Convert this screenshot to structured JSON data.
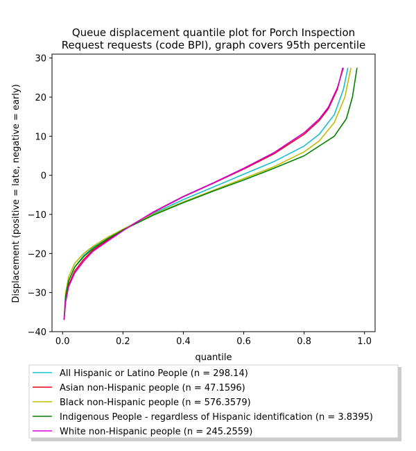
{
  "chart_data": {
    "type": "line",
    "title_lines": [
      "Queue displacement quantile plot for Porch Inspection",
      "Request  requests (code BPI), graph covers 95th percentile"
    ],
    "xlabel": "quantile",
    "ylabel": "Displacement (positive = late, negative = early)",
    "xlim": [
      -0.035,
      1.035
    ],
    "ylim": [
      -40,
      31
    ],
    "x_ticks": [
      0.0,
      0.2,
      0.4,
      0.6,
      0.8,
      1.0
    ],
    "x_tick_labels": [
      "0.0",
      "0.2",
      "0.4",
      "0.6",
      "0.8",
      "1.0"
    ],
    "y_ticks": [
      -40,
      -30,
      -20,
      -10,
      0,
      10,
      20,
      30
    ],
    "y_tick_labels": [
      "−40",
      "−30",
      "−20",
      "−10",
      "0",
      "10",
      "20",
      "30"
    ],
    "legend_position": "below",
    "series": [
      {
        "name": "All Hispanic or Latino People (n = 298.14)",
        "color": "#17becf",
        "x": [
          0.005,
          0.01,
          0.02,
          0.04,
          0.07,
          0.1,
          0.15,
          0.2,
          0.3,
          0.4,
          0.5,
          0.6,
          0.7,
          0.8,
          0.85,
          0.9,
          0.93,
          0.945
        ],
        "y": [
          -37,
          -31,
          -27,
          -23.5,
          -20.5,
          -18.5,
          -16,
          -13.8,
          -9.8,
          -6.2,
          -3.0,
          0.3,
          3.5,
          7.5,
          10.5,
          15.5,
          22,
          27.5
        ]
      },
      {
        "name": "Asian non-Hispanic people (n = 47.1596)",
        "color": "#e8001c",
        "x": [
          0.005,
          0.01,
          0.02,
          0.04,
          0.07,
          0.1,
          0.15,
          0.2,
          0.3,
          0.4,
          0.5,
          0.6,
          0.7,
          0.8,
          0.85,
          0.88,
          0.91,
          0.928
        ],
        "y": [
          -37,
          -32,
          -28,
          -24.5,
          -21.5,
          -19.2,
          -16.5,
          -14,
          -9.5,
          -5.5,
          -2.0,
          1.6,
          5.5,
          10.5,
          14.0,
          17.0,
          22.0,
          27.5
        ]
      },
      {
        "name": "Black non-Hispanic people (n = 576.3579)",
        "color": "#bcbd00",
        "x": [
          0.005,
          0.01,
          0.02,
          0.04,
          0.07,
          0.1,
          0.15,
          0.2,
          0.3,
          0.4,
          0.5,
          0.6,
          0.7,
          0.8,
          0.85,
          0.9,
          0.935,
          0.955
        ],
        "y": [
          -37,
          -30,
          -26,
          -22.5,
          -20,
          -18.2,
          -15.8,
          -13.8,
          -10,
          -6.8,
          -3.8,
          -0.8,
          2.2,
          6.0,
          8.8,
          13.5,
          20.0,
          27.5
        ]
      },
      {
        "name": "Indigenous People - regardless of Hispanic identification (n = 3.8395)",
        "color": "#008000",
        "x": [
          0.005,
          0.01,
          0.02,
          0.04,
          0.07,
          0.1,
          0.15,
          0.2,
          0.3,
          0.4,
          0.5,
          0.6,
          0.7,
          0.8,
          0.9,
          0.94,
          0.96,
          0.975
        ],
        "y": [
          -37,
          -31,
          -27,
          -23.5,
          -20.8,
          -18.8,
          -16.2,
          -14.0,
          -10.2,
          -7.0,
          -4.0,
          -1.2,
          1.8,
          5.0,
          10.0,
          14.5,
          20.0,
          27.5
        ]
      },
      {
        "name": "White non-Hispanic people (n = 245.2559)",
        "color": "#d400d4",
        "x": [
          0.005,
          0.01,
          0.02,
          0.04,
          0.07,
          0.1,
          0.15,
          0.2,
          0.3,
          0.4,
          0.5,
          0.6,
          0.7,
          0.8,
          0.85,
          0.88,
          0.91,
          0.93
        ],
        "y": [
          -37,
          -32.5,
          -28.5,
          -25,
          -22,
          -19.5,
          -16.8,
          -14.2,
          -9.4,
          -5.4,
          -1.9,
          1.8,
          5.8,
          10.9,
          14.4,
          17.4,
          22.4,
          27.5
        ]
      }
    ]
  }
}
